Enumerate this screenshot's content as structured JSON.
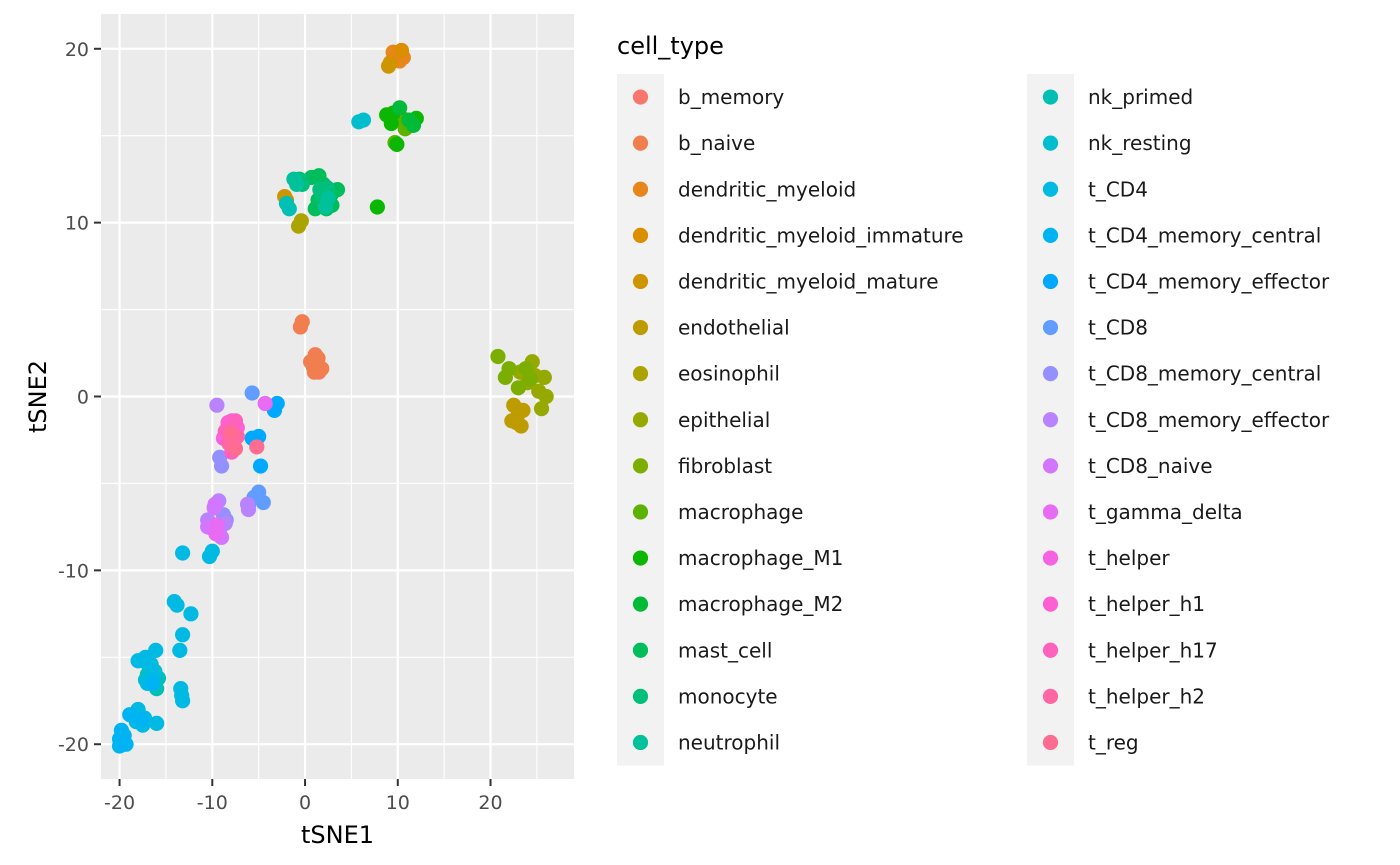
{
  "chart_data": {
    "type": "scatter",
    "xlabel": "tSNE1",
    "ylabel": "tSNE2",
    "xlim": [
      -22,
      29
    ],
    "ylim": [
      -22,
      22
    ],
    "x_ticks": [
      -20,
      -10,
      0,
      10,
      20
    ],
    "x_tick_labels": [
      "-20",
      "-10",
      "0",
      "10",
      "20"
    ],
    "y_ticks": [
      -20,
      -10,
      0,
      10,
      20
    ],
    "y_tick_labels": [
      "-20",
      "-10",
      "0",
      "10",
      "20"
    ],
    "panel_background": "#ebebeb",
    "grid": true,
    "grid_color": "#ffffff",
    "legend": {
      "title": "cell_type",
      "placement": "right",
      "columns": 2
    },
    "series": [
      {
        "name": "b_memory",
        "color": "#F8766D",
        "points": [
          [
            1.2,
            1.8
          ],
          [
            1.5,
            1.4
          ]
        ]
      },
      {
        "name": "b_naive",
        "color": "#F07E4F",
        "points": [
          [
            -0.3,
            4.3
          ],
          [
            -0.5,
            4.0
          ],
          [
            0.6,
            2.0
          ],
          [
            1.0,
            1.4
          ],
          [
            1.4,
            2.2
          ],
          [
            1.8,
            1.6
          ],
          [
            1.1,
            2.4
          ],
          [
            0.9,
            1.7
          ]
        ]
      },
      {
        "name": "dendritic_myeloid",
        "color": "#E7861B",
        "points": [
          [
            9.5,
            19.8
          ],
          [
            10.0,
            19.6
          ],
          [
            10.3,
            19.8
          ],
          [
            10.6,
            19.5
          ],
          [
            10.2,
            19.3
          ]
        ]
      },
      {
        "name": "dendritic_myeloid_immature",
        "color": "#DB8E00",
        "points": [
          [
            9.2,
            19.2
          ],
          [
            10.4,
            19.9
          ]
        ]
      },
      {
        "name": "dendritic_myeloid_mature",
        "color": "#CD9600",
        "points": [
          [
            -2.2,
            11.5
          ],
          [
            -2.0,
            11.3
          ],
          [
            9.0,
            19.0
          ]
        ]
      },
      {
        "name": "endothelial",
        "color": "#BE9C00",
        "points": [
          [
            22.5,
            -0.5
          ],
          [
            23.0,
            -1.0
          ],
          [
            22.8,
            -1.5
          ],
          [
            23.3,
            -1.7
          ],
          [
            22.3,
            -1.4
          ],
          [
            23.5,
            -0.8
          ]
        ]
      },
      {
        "name": "eosinophil",
        "color": "#ABA300",
        "points": [
          [
            -0.7,
            9.8
          ],
          [
            -0.4,
            10.1
          ]
        ]
      },
      {
        "name": "epithelial",
        "color": "#96A900",
        "points": [
          [
            24.5,
            2.0
          ],
          [
            25.2,
            0.3
          ],
          [
            26.0,
            0.0
          ],
          [
            25.5,
            -0.7
          ],
          [
            24.8,
            1.2
          ],
          [
            25.8,
            1.1
          ],
          [
            24.0,
            0.8
          ],
          [
            23.2,
            1.4
          ]
        ]
      },
      {
        "name": "fibroblast",
        "color": "#7CAE00",
        "points": [
          [
            20.8,
            2.3
          ],
          [
            22.0,
            1.6
          ],
          [
            21.6,
            1.1
          ],
          [
            23.8,
            1.6
          ],
          [
            24.3,
            1.0
          ],
          [
            23.0,
            0.5
          ]
        ]
      },
      {
        "name": "macrophage",
        "color": "#5BB300",
        "points": [
          [
            10.0,
            16.4
          ],
          [
            10.5,
            16.0
          ],
          [
            11.0,
            15.8
          ],
          [
            9.7,
            14.6
          ],
          [
            10.8,
            15.4
          ],
          [
            11.5,
            15.6
          ]
        ]
      },
      {
        "name": "macrophage_M1",
        "color": "#0BB702",
        "points": [
          [
            8.8,
            16.2
          ],
          [
            9.5,
            16.3
          ],
          [
            12.0,
            16.0
          ],
          [
            9.3,
            15.7
          ],
          [
            7.8,
            10.9
          ],
          [
            9.9,
            14.5
          ]
        ]
      },
      {
        "name": "macrophage_M2",
        "color": "#00BA38",
        "points": [
          [
            11.2,
            15.9
          ],
          [
            10.2,
            16.6
          ],
          [
            11.7,
            15.6
          ]
        ]
      },
      {
        "name": "mast_cell",
        "color": "#00BD5C",
        "points": [
          [
            1.5,
            12.7
          ],
          [
            2.0,
            12.2
          ],
          [
            2.8,
            11.6
          ],
          [
            3.5,
            11.9
          ],
          [
            1.4,
            11.3
          ],
          [
            2.3,
            10.8
          ],
          [
            1.1,
            10.8
          ],
          [
            2.9,
            11.0
          ],
          [
            0.7,
            12.6
          ]
        ]
      },
      {
        "name": "monocyte",
        "color": "#00BF7C",
        "points": [
          [
            -0.6,
            12.5
          ],
          [
            -0.3,
            12.2
          ],
          [
            1.9,
            11.6
          ],
          [
            2.4,
            12.0
          ],
          [
            1.6,
            11.9
          ]
        ]
      },
      {
        "name": "neutrophil",
        "color": "#00C19A",
        "points": [
          [
            -0.9,
            12.2
          ],
          [
            -1.2,
            12.5
          ],
          [
            2.5,
            11.4
          ],
          [
            2.2,
            10.9
          ]
        ]
      },
      {
        "name": "nk_primed",
        "color": "#00C0B5",
        "points": [
          [
            -2.0,
            11.1
          ],
          [
            -1.7,
            10.8
          ],
          [
            -17.0,
            -16.0
          ],
          [
            -16.5,
            -16.5
          ],
          [
            -17.5,
            -15.2
          ],
          [
            -16.0,
            -16.8
          ],
          [
            -15.8,
            -16.2
          ]
        ]
      },
      {
        "name": "nk_resting",
        "color": "#00BECE",
        "points": [
          [
            5.8,
            15.8
          ],
          [
            6.3,
            15.9
          ],
          [
            -16.8,
            -15.5
          ],
          [
            -16.2,
            -15.8
          ],
          [
            -17.2,
            -16.3
          ]
        ]
      },
      {
        "name": "t_CD4",
        "color": "#00BAE3",
        "points": [
          [
            -10.3,
            -9.2
          ],
          [
            -10.0,
            -8.9
          ],
          [
            -13.2,
            -9.0
          ],
          [
            -13.8,
            -12.0
          ],
          [
            -14.1,
            -11.8
          ],
          [
            -12.3,
            -12.5
          ],
          [
            -13.2,
            -13.7
          ],
          [
            -13.5,
            -14.6
          ],
          [
            -13.4,
            -16.8
          ],
          [
            -13.3,
            -17.2
          ],
          [
            -13.2,
            -17.5
          ],
          [
            -16.1,
            -14.6
          ],
          [
            -18.0,
            -15.2
          ],
          [
            -17.2,
            -15.0
          ],
          [
            -16.6,
            -15.4
          ],
          [
            -17.0,
            -16.5
          ],
          [
            -16.3,
            -16.0
          ],
          [
            -18.0,
            -18.0
          ],
          [
            -17.3,
            -18.5
          ],
          [
            -16.0,
            -18.8
          ],
          [
            -18.2,
            -18.7
          ],
          [
            -17.5,
            -18.9
          ]
        ]
      },
      {
        "name": "t_CD4_memory_central",
        "color": "#00B3F2",
        "points": [
          [
            -19.8,
            -19.2
          ],
          [
            -20.0,
            -19.7
          ],
          [
            -19.6,
            -19.8
          ],
          [
            -19.3,
            -20.0
          ],
          [
            -20.0,
            -20.1
          ],
          [
            -19.5,
            -19.5
          ],
          [
            -18.9,
            -18.3
          ],
          [
            -17.7,
            -18.6
          ],
          [
            -16.4,
            -16.5
          ]
        ]
      },
      {
        "name": "t_CD4_memory_effector",
        "color": "#00A9FF",
        "points": [
          [
            -5.0,
            -2.3
          ],
          [
            -5.3,
            -2.6
          ],
          [
            -4.8,
            -4.0
          ],
          [
            -3.3,
            -0.8
          ],
          [
            -3.0,
            -0.4
          ],
          [
            -5.7,
            -2.4
          ]
        ]
      },
      {
        "name": "t_CD8",
        "color": "#619CFF",
        "points": [
          [
            -5.7,
            0.2
          ],
          [
            -5.0,
            -5.5
          ],
          [
            -4.5,
            -6.1
          ],
          [
            -6.1,
            -6.3
          ],
          [
            -5.5,
            -5.8
          ]
        ]
      },
      {
        "name": "t_CD8_memory_central",
        "color": "#9590FF",
        "points": [
          [
            -9.2,
            -3.5
          ],
          [
            -9.0,
            -4.0
          ],
          [
            -8.8,
            -6.8
          ],
          [
            -8.5,
            -7.1
          ]
        ]
      },
      {
        "name": "t_CD8_memory_effector",
        "color": "#B983FF",
        "points": [
          [
            -9.5,
            -0.5
          ],
          [
            -10.5,
            -7.1
          ],
          [
            -9.3,
            -6.0
          ],
          [
            -8.6,
            -7.3
          ],
          [
            -6.2,
            -6.2
          ],
          [
            -9.2,
            -7.6
          ],
          [
            -6.1,
            -6.5
          ]
        ]
      },
      {
        "name": "t_CD8_naive",
        "color": "#D376FF",
        "points": [
          [
            -9.7,
            -6.2
          ],
          [
            -10.0,
            -7.6
          ],
          [
            -9.4,
            -7.8
          ],
          [
            -9.0,
            -8.1
          ],
          [
            -10.5,
            -7.5
          ],
          [
            -9.8,
            -6.4
          ]
        ]
      },
      {
        "name": "t_gamma_delta",
        "color": "#E76BF3",
        "points": [
          [
            -4.3,
            -0.4
          ],
          [
            -9.5,
            -7.4
          ],
          [
            -9.6,
            -7.9
          ]
        ]
      },
      {
        "name": "t_helper",
        "color": "#F563E3",
        "points": [
          [
            -7.9,
            -1.4
          ],
          [
            -7.3,
            -1.8
          ],
          [
            -8.4,
            -2.2
          ],
          [
            -8.8,
            -2.4
          ],
          [
            -7.6,
            -2.5
          ]
        ]
      },
      {
        "name": "t_helper_h1",
        "color": "#FD61D1",
        "points": [
          [
            -7.8,
            -2.8
          ],
          [
            -8.0,
            -1.9
          ],
          [
            -7.6,
            -2.2
          ],
          [
            -8.3,
            -1.5
          ]
        ]
      },
      {
        "name": "t_helper_h17",
        "color": "#FF62BC",
        "points": [
          [
            -7.5,
            -1.4
          ],
          [
            -7.9,
            -3.2
          ],
          [
            -8.6,
            -2.0
          ]
        ]
      },
      {
        "name": "t_helper_h2",
        "color": "#FF67A4",
        "points": [
          [
            -7.8,
            -2.6
          ],
          [
            -7.3,
            -2.3
          ],
          [
            -8.2,
            -2.7
          ]
        ]
      },
      {
        "name": "t_reg",
        "color": "#FF6C91",
        "points": [
          [
            -5.2,
            -2.9
          ],
          [
            -7.5,
            -3.0
          ],
          [
            -8.0,
            -2.1
          ]
        ]
      }
    ]
  }
}
